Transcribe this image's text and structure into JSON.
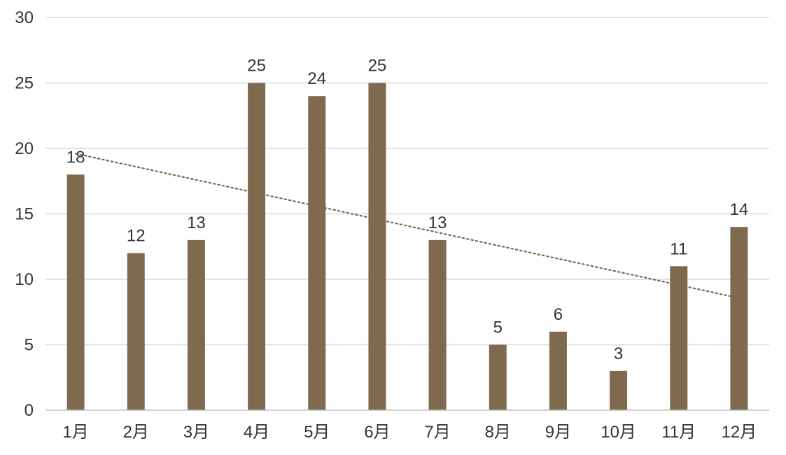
{
  "chart_data": {
    "type": "bar",
    "categories": [
      "1月",
      "2月",
      "3月",
      "4月",
      "5月",
      "6月",
      "7月",
      "8月",
      "9月",
      "10月",
      "11月",
      "12月"
    ],
    "values": [
      18,
      12,
      13,
      25,
      24,
      25,
      13,
      5,
      6,
      3,
      11,
      14
    ],
    "title": "",
    "xlabel": "",
    "ylabel": "",
    "ylim": [
      0,
      30
    ],
    "yticks": [
      0,
      5,
      10,
      15,
      20,
      25,
      30
    ],
    "grid": true,
    "legend": "none",
    "data_labels": true,
    "trendline": {
      "type": "linear",
      "style": "dotted"
    },
    "colors": {
      "bar": "#7f6a4f",
      "trendline": "#7f6a4f",
      "grid": "#d9d9d9",
      "axis": "#bfbfbf",
      "text": "#333333"
    }
  }
}
